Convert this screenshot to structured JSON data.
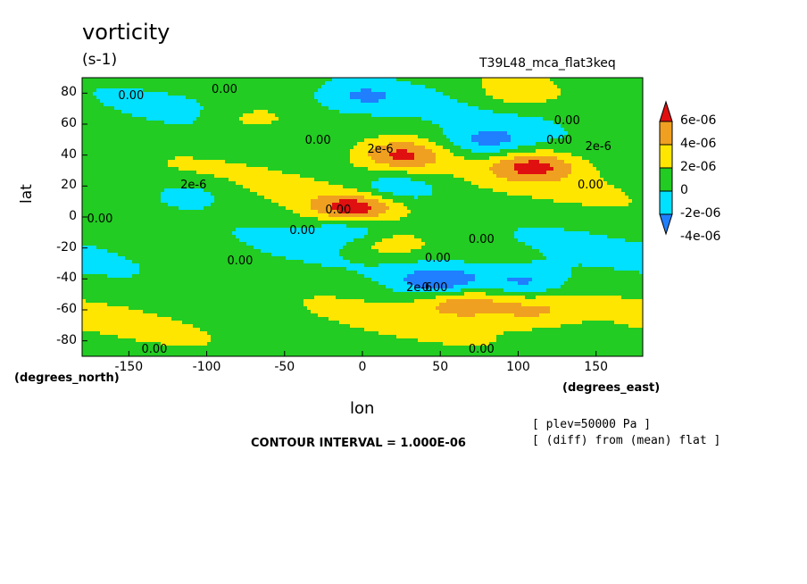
{
  "chart_data": {
    "type": "heatmap",
    "title": "vorticity",
    "units": "(s-1)",
    "experiment": "T39L48_mca_flat3keq",
    "xlabel": "lon",
    "ylabel": "lat",
    "x_units_label": "(degrees_east)",
    "y_units_label": "(degrees_north)",
    "xlim": [
      -180,
      180
    ],
    "ylim": [
      -90,
      90
    ],
    "x_ticks": [
      "-150",
      "-100",
      "-50",
      "0",
      "50",
      "100",
      "150"
    ],
    "y_ticks": [
      "80",
      "60",
      "40",
      "20",
      "0",
      "-20",
      "-40",
      "-60",
      "-80"
    ],
    "contour_interval_text": "CONTOUR INTERVAL = 1.000E-06",
    "notes": [
      "[ plev=50000 Pa ]",
      "[ (diff) from (mean) flat ]"
    ],
    "colorbar": {
      "labels": [
        "6e-06",
        "4e-06",
        "2e-06",
        "0",
        "-2e-06",
        "-4e-06"
      ],
      "colors": [
        "#e01010",
        "#f0a020",
        "#ffe600",
        "#22cc22",
        "#00e0ff",
        "#1f7fff"
      ]
    },
    "contour_labels": [
      "0.00",
      "2e-6",
      "2e-6",
      "0.00",
      "0.00",
      "0.00",
      "0.00",
      "0.00",
      "0.00",
      "0.00",
      "0.00",
      "2e-6",
      "0.00",
      "0.00",
      "0.00",
      "0.00",
      "2e-6",
      "0.00",
      "0.00"
    ],
    "features": [
      {
        "kind": "max",
        "lon": -5,
        "lat": 6,
        "value": 6e-06
      },
      {
        "kind": "max",
        "lon": 25,
        "lat": 40,
        "value": 5e-06
      },
      {
        "kind": "max",
        "lon": 110,
        "lat": 33,
        "value": 5e-06
      },
      {
        "kind": "max",
        "lon": 65,
        "lat": -55,
        "value": 4.5e-06
      },
      {
        "kind": "max",
        "lon": -70,
        "lat": 63,
        "value": 2.5e-06
      },
      {
        "kind": "max",
        "lon": 100,
        "lat": 80,
        "value": 2.5e-06
      },
      {
        "kind": "max",
        "lon": 15,
        "lat": -18,
        "value": 3e-06
      },
      {
        "kind": "max",
        "lon": 110,
        "lat": -60,
        "value": 3e-06
      },
      {
        "kind": "min",
        "lon": 80,
        "lat": 48,
        "value": -3.5e-06
      },
      {
        "kind": "min",
        "lon": 20,
        "lat": 18,
        "value": -3e-06
      },
      {
        "kind": "min",
        "lon": 50,
        "lat": -42,
        "value": -4.5e-06
      },
      {
        "kind": "min",
        "lon": 105,
        "lat": -42,
        "value": -3.5e-06
      },
      {
        "kind": "min",
        "lon": -5,
        "lat": -8,
        "value": -3e-06
      },
      {
        "kind": "min",
        "lon": -110,
        "lat": 15,
        "value": -2e-06
      },
      {
        "kind": "min",
        "lon": 0,
        "lat": 78,
        "value": -2.5e-06
      }
    ]
  }
}
